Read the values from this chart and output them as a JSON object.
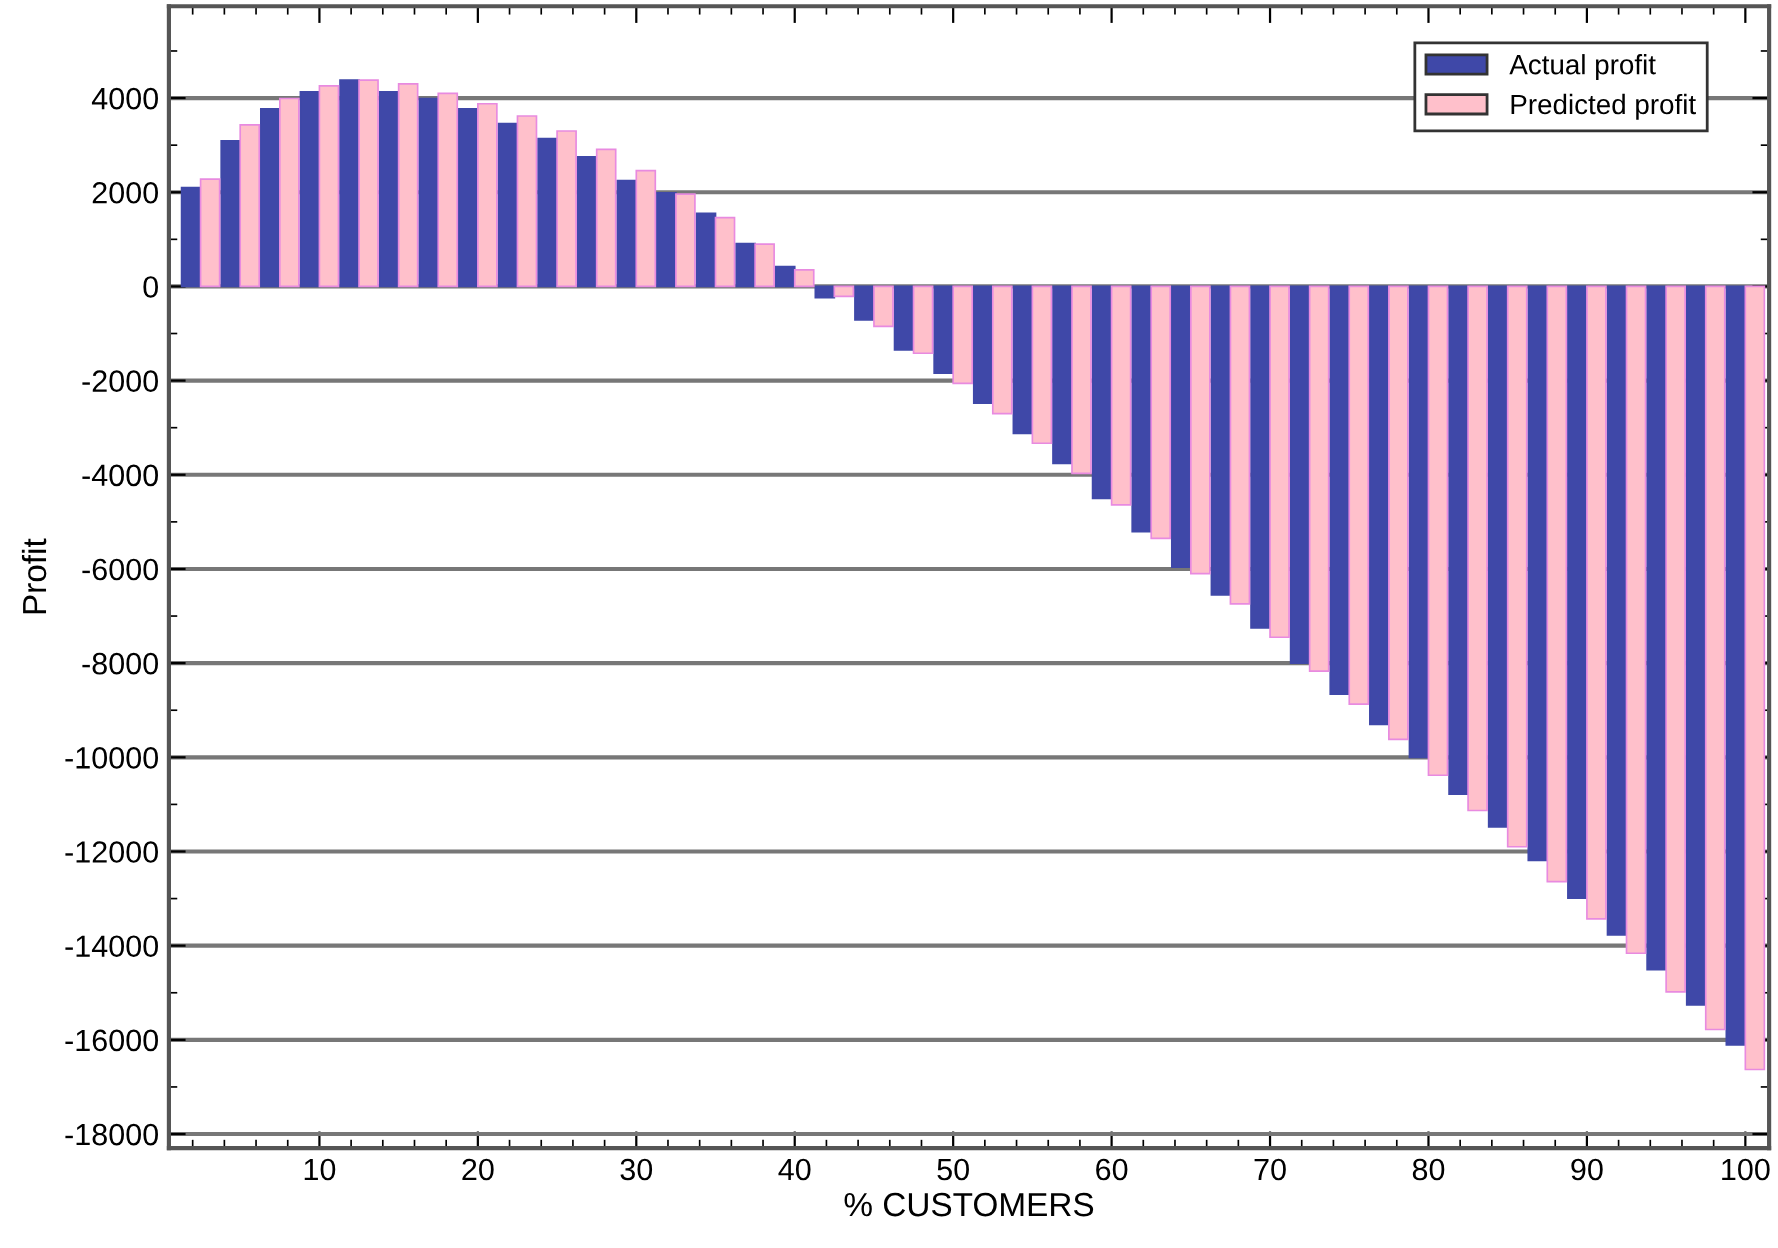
{
  "chart_data": {
    "type": "bar",
    "xlabel": "% CUSTOMERS",
    "ylabel": "Profit",
    "series": [
      {
        "name": "Actual profit",
        "color": "#3f48a8",
        "x": [
          1.9,
          4.4,
          6.9,
          9.4,
          11.9,
          14.4,
          16.9,
          19.4,
          21.9,
          24.4,
          26.9,
          29.4,
          31.9,
          34.4,
          36.9,
          39.4,
          41.9,
          44.4,
          46.9,
          49.4,
          51.9,
          54.4,
          56.9,
          59.4,
          61.9,
          64.4,
          66.9,
          69.4,
          71.9,
          74.4,
          76.9,
          79.4,
          81.9,
          84.4,
          86.9,
          89.4,
          91.9,
          94.4,
          96.9,
          99.4
        ],
        "values": [
          2100,
          3090,
          3770,
          4130,
          4380,
          4130,
          3990,
          3770,
          3460,
          3140,
          2750,
          2250,
          1990,
          1550,
          910,
          420,
          -240,
          -710,
          -1350,
          -1840,
          -2480,
          -3120,
          -3760,
          -4500,
          -5210,
          -5960,
          -6550,
          -7250,
          -8000,
          -8660,
          -9300,
          -10000,
          -10780,
          -11480,
          -12190,
          -12990,
          -13770,
          -14510,
          -15260,
          -16110
        ]
      },
      {
        "name": "Predicted profit",
        "color": "#ffc0cb",
        "x": [
          3.1,
          5.6,
          8.1,
          10.6,
          13.1,
          15.6,
          18.1,
          20.6,
          23.1,
          25.6,
          28.1,
          30.6,
          33.1,
          35.6,
          38.1,
          40.6,
          43.1,
          45.6,
          48.1,
          50.6,
          53.1,
          55.6,
          58.1,
          60.6,
          63.1,
          65.6,
          68.1,
          70.6,
          73.1,
          75.6,
          78.1,
          80.6,
          83.1,
          85.6,
          88.1,
          90.6,
          93.1,
          95.6,
          98.1,
          100.6
        ],
        "values": [
          2280,
          3430,
          3990,
          4260,
          4380,
          4300,
          4100,
          3880,
          3620,
          3300,
          2910,
          2460,
          1960,
          1460,
          900,
          350,
          -210,
          -850,
          -1420,
          -2060,
          -2700,
          -3330,
          -3970,
          -4640,
          -5350,
          -6100,
          -6740,
          -7450,
          -8170,
          -8870,
          -9620,
          -10380,
          -11130,
          -11900,
          -12640,
          -13430,
          -14160,
          -14980,
          -15780,
          -16630
        ]
      }
    ],
    "xlim": [
      0.5,
      101.5
    ],
    "xticks": [
      10,
      20,
      30,
      40,
      50,
      60,
      70,
      80,
      90,
      100
    ],
    "ylim": [
      -18300,
      5950
    ],
    "yticks": [
      -18000,
      -16000,
      -14000,
      -12000,
      -10000,
      -8000,
      -6000,
      -4000,
      -2000,
      0,
      2000,
      4000
    ],
    "grid": "y",
    "legend": "top right"
  }
}
